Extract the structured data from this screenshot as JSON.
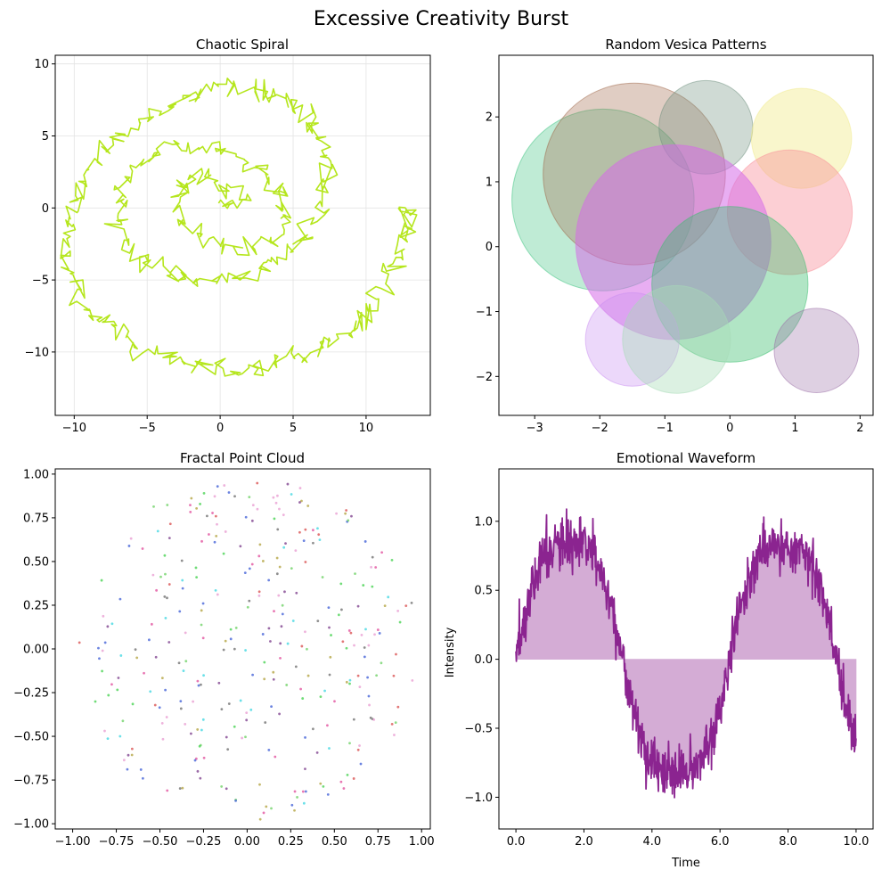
{
  "figure": {
    "suptitle": "Excessive Creativity Burst"
  },
  "chart_data": [
    {
      "id": "spiral",
      "type": "line",
      "title": "Chaotic Spiral",
      "xlabel": "",
      "ylabel": "",
      "xlim": [
        -11.3,
        14.4
      ],
      "ylim": [
        -14.4,
        10.6
      ],
      "xticks": [
        -10,
        -5,
        0,
        5,
        10
      ],
      "yticks": [
        -10,
        -5,
        0,
        5,
        10
      ],
      "grid": true,
      "color": "#b5e61d",
      "series": [
        {
          "description_points": "noisy outward spiral",
          "x": [
            0.0,
            1.8,
            0.2,
            -1.5,
            -2.8,
            -2.6,
            -1.0,
            1.4,
            3.4,
            4.5,
            4.4,
            3.2,
            1.0,
            -1.6,
            -4.0,
            -5.6,
            -6.6,
            -7.0,
            -6.4,
            -5.0,
            -3.0,
            -0.6,
            1.8,
            4.0,
            5.8,
            7.0,
            7.4,
            7.2,
            6.6,
            5.6,
            4.2,
            2.6,
            0.8,
            -1.2,
            -3.2,
            -5.2,
            -7.0,
            -8.6,
            -9.8,
            -10.4,
            -10.6,
            -10.2,
            -9.2,
            -7.8,
            -6.0,
            -4.0,
            -1.8,
            0.4,
            2.6,
            4.8,
            6.8,
            8.6,
            10.0,
            11.0,
            11.8,
            12.6,
            13.0,
            12.2
          ],
          "y": [
            0.0,
            0.6,
            1.8,
            2.2,
            1.2,
            -0.8,
            -2.4,
            -3.0,
            -2.4,
            -1.0,
            0.8,
            2.4,
            3.6,
            4.4,
            4.2,
            3.0,
            1.4,
            -0.6,
            -2.4,
            -3.8,
            -4.8,
            -5.0,
            -4.6,
            -3.6,
            -2.0,
            0.0,
            2.0,
            4.0,
            5.6,
            6.8,
            7.6,
            8.2,
            8.4,
            8.0,
            7.2,
            6.2,
            4.8,
            3.0,
            1.0,
            -1.0,
            -3.0,
            -5.0,
            -6.8,
            -8.2,
            -9.4,
            -10.2,
            -10.8,
            -11.2,
            -11.0,
            -10.4,
            -9.8,
            -8.8,
            -7.4,
            -5.6,
            -4.0,
            -2.0,
            -0.6,
            0.0
          ]
        }
      ]
    },
    {
      "id": "vesica",
      "type": "scatter",
      "title": "Random Vesica Patterns",
      "xlabel": "",
      "ylabel": "",
      "xlim": [
        -3.55,
        2.2
      ],
      "ylim": [
        -2.6,
        2.95
      ],
      "xticks": [
        -3,
        -2,
        -1,
        0,
        1,
        2
      ],
      "yticks": [
        -2,
        -1,
        0,
        1,
        2
      ],
      "grid": false,
      "circles": [
        {
          "cx": -1.95,
          "cy": 0.72,
          "r": 1.4,
          "color": "#3cc380",
          "opacity": 0.33
        },
        {
          "cx": -1.47,
          "cy": 1.12,
          "r": 1.4,
          "color": "#a0674a",
          "opacity": 0.33
        },
        {
          "cx": -0.37,
          "cy": 1.84,
          "r": 0.72,
          "color": "#6e8f7d",
          "opacity": 0.33
        },
        {
          "cx": 1.1,
          "cy": 1.67,
          "r": 0.77,
          "color": "#f1eb8d",
          "opacity": 0.45
        },
        {
          "cx": 0.92,
          "cy": 0.53,
          "r": 0.96,
          "color": "#f98d98",
          "opacity": 0.42
        },
        {
          "cx": -0.87,
          "cy": 0.07,
          "r": 1.5,
          "color": "#d66be8",
          "opacity": 0.55
        },
        {
          "cx": 0.0,
          "cy": -0.58,
          "r": 1.2,
          "color": "#3bbf6f",
          "opacity": 0.4
        },
        {
          "cx": -1.5,
          "cy": -1.43,
          "r": 0.72,
          "color": "#c98ef2",
          "opacity": 0.35
        },
        {
          "cx": -0.82,
          "cy": -1.43,
          "r": 0.83,
          "color": "#a8dcb7",
          "opacity": 0.4
        },
        {
          "cx": 1.33,
          "cy": -1.6,
          "r": 0.65,
          "color": "#9b6fa8",
          "opacity": 0.33
        }
      ]
    },
    {
      "id": "cloud",
      "type": "scatter",
      "title": "Fractal Point Cloud",
      "xlabel": "",
      "ylabel": "",
      "xlim": [
        -1.1,
        1.05
      ],
      "ylim": [
        -1.03,
        1.03
      ],
      "xticks": [
        -1.0,
        -0.75,
        -0.5,
        -0.25,
        0.0,
        0.25,
        0.5,
        0.75,
        1.0
      ],
      "yticks": [
        -1.0,
        -0.75,
        -0.5,
        -0.25,
        0.0,
        0.25,
        0.5,
        0.75,
        1.0
      ],
      "grid": false,
      "point_count": 320,
      "palette": [
        "#3b5bd6",
        "#e04a9a",
        "#3fd04a",
        "#b0a03a",
        "#7a3a8a",
        "#3ad6e0",
        "#d84a4a",
        "#6a6a6a",
        "#e89ad0",
        "#6ad060"
      ]
    },
    {
      "id": "wave",
      "type": "area",
      "title": "Emotional Waveform",
      "xlabel": "Time",
      "ylabel": "Intensity",
      "xlim": [
        -0.5,
        10.5
      ],
      "ylim": [
        -1.23,
        1.38
      ],
      "xticks": [
        0,
        2,
        4,
        6,
        8,
        10
      ],
      "yticks": [
        -1.0,
        -0.5,
        0.0,
        0.5,
        1.0
      ],
      "grid": false,
      "color": "#8b2490",
      "fill_color": "#d4acd5",
      "series": [
        {
          "x": [
            0,
            0.5,
            1.0,
            1.5,
            2.0,
            2.5,
            3.0,
            3.5,
            4.0,
            4.5,
            5.0,
            5.5,
            6.0,
            6.5,
            7.0,
            7.5,
            8.0,
            8.5,
            9.0,
            9.5,
            10.0
          ],
          "y": [
            0.0,
            0.48,
            0.84,
            1.0,
            0.91,
            0.6,
            0.14,
            -0.35,
            -0.76,
            -0.98,
            -0.96,
            -0.71,
            -0.28,
            0.22,
            0.66,
            0.94,
            0.99,
            0.8,
            0.41,
            -0.08,
            -0.54
          ]
        }
      ]
    }
  ]
}
